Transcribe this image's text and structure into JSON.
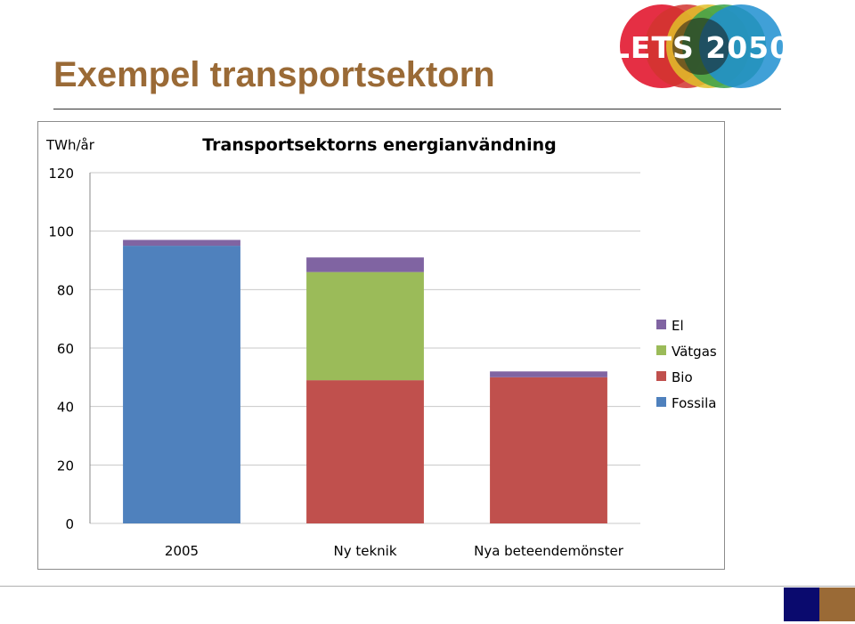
{
  "slide": {
    "title": "Exempel transportsektorn",
    "logo_text": "LETS 2050"
  },
  "colors": {
    "title": "#9a6a36",
    "fossila": "#4f81bd",
    "bio": "#c0504d",
    "vatgas": "#9bbb59",
    "el": "#8064a2",
    "footer_navy": "#0a0a6e",
    "footer_brown": "#9a6a36"
  },
  "chart_data": {
    "type": "bar",
    "stacked": true,
    "title": "Transportsektorns energianvändning",
    "ylabel": "TWh/år",
    "xlabel": "",
    "ylim": [
      0,
      120
    ],
    "yticks": [
      0,
      20,
      40,
      60,
      80,
      100,
      120
    ],
    "grid": true,
    "legend_position": "right",
    "categories": [
      "2005",
      "Ny teknik",
      "Nya beteendemönster"
    ],
    "series": [
      {
        "name": "Fossila",
        "color": "#4f81bd",
        "values": [
          95,
          0,
          0
        ]
      },
      {
        "name": "Bio",
        "color": "#c0504d",
        "values": [
          0,
          49,
          50
        ]
      },
      {
        "name": "Vätgas",
        "color": "#9bbb59",
        "values": [
          0,
          37,
          0
        ]
      },
      {
        "name": "El",
        "color": "#8064a2",
        "values": [
          2,
          5,
          2
        ]
      }
    ]
  }
}
